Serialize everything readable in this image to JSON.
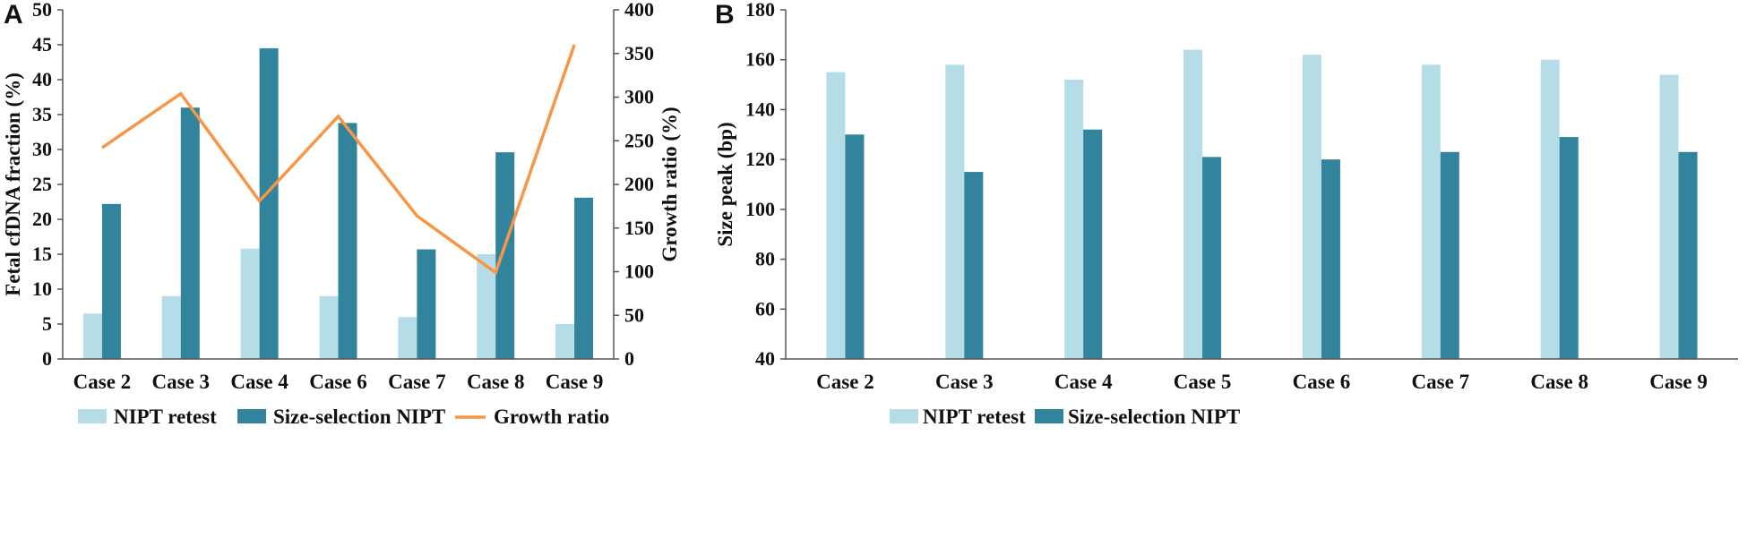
{
  "colors": {
    "light": "#b4dde8",
    "dark": "#31849b",
    "line": "#f79646",
    "axis": "#555555"
  },
  "chart_data": [
    {
      "panel_label": "A",
      "type": "bar",
      "categories": [
        "Case 2",
        "Case 3",
        "Case 4",
        "Case 6",
        "Case 7",
        "Case 8",
        "Case 9"
      ],
      "series": [
        {
          "name": "NIPT retest",
          "values": [
            6.5,
            9.0,
            15.8,
            9.0,
            6.0,
            15.0,
            5.0
          ]
        },
        {
          "name": "Size-selection NIPT",
          "values": [
            22.2,
            36.0,
            44.5,
            33.8,
            15.7,
            29.6,
            23.1
          ]
        },
        {
          "name": "Growth ratio",
          "type": "line",
          "axis": "right",
          "values": [
            242,
            304,
            181,
            278,
            164,
            99,
            360
          ]
        }
      ],
      "ylabel": "Fetal cfDNA fraction (%)",
      "ylabel_right": "Growth ratio (%)",
      "ylim": [
        0,
        50
      ],
      "yticks": [
        0,
        5,
        10,
        15,
        20,
        25,
        30,
        35,
        40,
        45,
        50
      ],
      "ylim_right": [
        0,
        400
      ],
      "yticks_right": [
        0,
        50,
        100,
        150,
        200,
        250,
        300,
        350,
        400
      ],
      "legend": [
        "NIPT retest",
        "Size-selection NIPT",
        "Growth ratio"
      ],
      "legend_position": "bottom",
      "grid": false
    },
    {
      "panel_label": "B",
      "type": "bar",
      "categories": [
        "Case 2",
        "Case 3",
        "Case 4",
        "Case 5",
        "Case 6",
        "Case 7",
        "Case 8",
        "Case 9"
      ],
      "series": [
        {
          "name": "NIPT retest",
          "values": [
            155,
            158,
            152,
            164,
            162,
            158,
            160,
            154
          ]
        },
        {
          "name": "Size-selection NIPT",
          "values": [
            130,
            115,
            132,
            121,
            120,
            123,
            129,
            123
          ]
        }
      ],
      "ylabel": "Size peak (bp)",
      "ylim": [
        40,
        180
      ],
      "yticks": [
        40,
        60,
        80,
        100,
        120,
        140,
        160,
        180
      ],
      "legend": [
        "NIPT retest",
        "Size-selection NIPT"
      ],
      "legend_position": "bottom",
      "grid": false
    }
  ]
}
